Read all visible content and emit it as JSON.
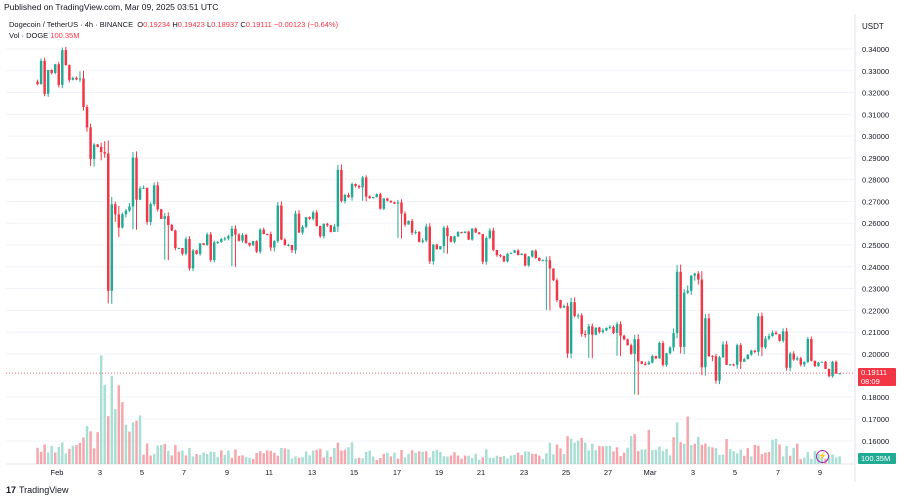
{
  "header": {
    "published": "Published on TradingView.com, Mar 09, 2025 03:51 UTC",
    "quote_unit": "USDT"
  },
  "legend": {
    "symbol": "Dogecoin / TetherUS · 4h · BINANCE",
    "open_label": "O",
    "open": "0.19234",
    "high_label": "H",
    "high": "0.19423",
    "low_label": "L",
    "low": "0.18937",
    "close_label": "C",
    "close": "0.19111",
    "change": "−0.00123 (−0.64%)",
    "vol_label": "Vol · DOGE",
    "vol_value": "100.35M"
  },
  "price_badge": {
    "price": "0.19111",
    "countdown": "08:09"
  },
  "volume_badge": "100.35M",
  "footer": {
    "brand": "TradingView"
  },
  "colors": {
    "up": "#22ab94",
    "down": "#f23645",
    "up_vol": "#a8ded4",
    "down_vol": "#f5a6ac",
    "grid": "#f0f3fa",
    "text": "#131722"
  },
  "chart_data": {
    "type": "candlestick",
    "timeframe": "4h",
    "ylim": [
      0.15,
      0.35
    ],
    "y_ticks": [
      "0.34000",
      "0.33000",
      "0.32000",
      "0.31000",
      "0.30000",
      "0.29000",
      "0.28000",
      "0.27000",
      "0.26000",
      "0.25000",
      "0.24000",
      "0.23000",
      "0.22000",
      "0.21000",
      "0.20000",
      "0.18000",
      "0.17000",
      "0.16000"
    ],
    "x_tick_labels": [
      "Feb",
      "3",
      "5",
      "7",
      "9",
      "11",
      "13",
      "15",
      "17",
      "19",
      "21",
      "23",
      "25",
      "27",
      "Mar",
      "3",
      "5",
      "7",
      "9"
    ],
    "last_price": 0.19111,
    "daily_closes": [
      {
        "day": "Jan 31",
        "o": 0.325,
        "h": 0.336,
        "l": 0.318,
        "c": 0.333
      },
      {
        "day": "Feb 1",
        "o": 0.333,
        "h": 0.341,
        "l": 0.322,
        "c": 0.326
      },
      {
        "day": "Feb 2",
        "o": 0.326,
        "h": 0.33,
        "l": 0.286,
        "c": 0.295
      },
      {
        "day": "Feb 3",
        "o": 0.295,
        "h": 0.298,
        "l": 0.223,
        "c": 0.258
      },
      {
        "day": "Feb 4",
        "o": 0.258,
        "h": 0.293,
        "l": 0.257,
        "c": 0.276
      },
      {
        "day": "Feb 5",
        "o": 0.276,
        "h": 0.279,
        "l": 0.259,
        "c": 0.262
      },
      {
        "day": "Feb 6",
        "o": 0.262,
        "h": 0.265,
        "l": 0.243,
        "c": 0.246
      },
      {
        "day": "Feb 7",
        "o": 0.246,
        "h": 0.254,
        "l": 0.238,
        "c": 0.25
      },
      {
        "day": "Feb 8",
        "o": 0.25,
        "h": 0.256,
        "l": 0.242,
        "c": 0.253
      },
      {
        "day": "Feb 9",
        "o": 0.253,
        "h": 0.259,
        "l": 0.24,
        "c": 0.251
      },
      {
        "day": "Feb 10",
        "o": 0.251,
        "h": 0.258,
        "l": 0.246,
        "c": 0.255
      },
      {
        "day": "Feb 11",
        "o": 0.255,
        "h": 0.27,
        "l": 0.247,
        "c": 0.25
      },
      {
        "day": "Feb 12",
        "o": 0.25,
        "h": 0.266,
        "l": 0.246,
        "c": 0.262
      },
      {
        "day": "Feb 13",
        "o": 0.262,
        "h": 0.266,
        "l": 0.253,
        "c": 0.256
      },
      {
        "day": "Feb 14",
        "o": 0.256,
        "h": 0.287,
        "l": 0.256,
        "c": 0.278
      },
      {
        "day": "Feb 15",
        "o": 0.278,
        "h": 0.282,
        "l": 0.27,
        "c": 0.272
      },
      {
        "day": "Feb 16",
        "o": 0.272,
        "h": 0.274,
        "l": 0.266,
        "c": 0.269
      },
      {
        "day": "Feb 17",
        "o": 0.269,
        "h": 0.271,
        "l": 0.253,
        "c": 0.256
      },
      {
        "day": "Feb 18",
        "o": 0.256,
        "h": 0.26,
        "l": 0.241,
        "c": 0.248
      },
      {
        "day": "Feb 19",
        "o": 0.248,
        "h": 0.259,
        "l": 0.246,
        "c": 0.256
      },
      {
        "day": "Feb 20",
        "o": 0.256,
        "h": 0.258,
        "l": 0.252,
        "c": 0.255
      },
      {
        "day": "Feb 21",
        "o": 0.255,
        "h": 0.258,
        "l": 0.241,
        "c": 0.245
      },
      {
        "day": "Feb 22",
        "o": 0.245,
        "h": 0.248,
        "l": 0.242,
        "c": 0.246
      },
      {
        "day": "Feb 23",
        "o": 0.246,
        "h": 0.248,
        "l": 0.24,
        "c": 0.243
      },
      {
        "day": "Feb 24",
        "o": 0.243,
        "h": 0.245,
        "l": 0.22,
        "c": 0.222
      },
      {
        "day": "Feb 25",
        "o": 0.222,
        "h": 0.226,
        "l": 0.198,
        "c": 0.209
      },
      {
        "day": "Feb 26",
        "o": 0.209,
        "h": 0.214,
        "l": 0.198,
        "c": 0.212
      },
      {
        "day": "Feb 27",
        "o": 0.212,
        "h": 0.215,
        "l": 0.199,
        "c": 0.204
      },
      {
        "day": "Feb 28",
        "o": 0.204,
        "h": 0.209,
        "l": 0.181,
        "c": 0.196
      },
      {
        "day": "Mar 1",
        "o": 0.196,
        "h": 0.206,
        "l": 0.194,
        "c": 0.203
      },
      {
        "day": "Mar 2",
        "o": 0.203,
        "h": 0.241,
        "l": 0.2,
        "c": 0.236
      },
      {
        "day": "Mar 3",
        "o": 0.236,
        "h": 0.238,
        "l": 0.19,
        "c": 0.199
      },
      {
        "day": "Mar 4",
        "o": 0.199,
        "h": 0.206,
        "l": 0.186,
        "c": 0.195
      },
      {
        "day": "Mar 5",
        "o": 0.195,
        "h": 0.205,
        "l": 0.193,
        "c": 0.201
      },
      {
        "day": "Mar 6",
        "o": 0.201,
        "h": 0.219,
        "l": 0.199,
        "c": 0.209
      },
      {
        "day": "Mar 7",
        "o": 0.209,
        "h": 0.212,
        "l": 0.192,
        "c": 0.198
      },
      {
        "day": "Mar 8",
        "o": 0.198,
        "h": 0.208,
        "l": 0.194,
        "c": 0.196
      },
      {
        "day": "Mar 9",
        "o": 0.196,
        "h": 0.197,
        "l": 0.189,
        "c": 0.191
      }
    ],
    "volume_relative": [
      0.2,
      0.25,
      0.35,
      1.0,
      0.55,
      0.2,
      0.18,
      0.15,
      0.12,
      0.15,
      0.12,
      0.14,
      0.13,
      0.14,
      0.2,
      0.12,
      0.1,
      0.13,
      0.13,
      0.11,
      0.1,
      0.13,
      0.1,
      0.11,
      0.2,
      0.28,
      0.18,
      0.17,
      0.3,
      0.16,
      0.45,
      0.32,
      0.22,
      0.17,
      0.22,
      0.18,
      0.12,
      0.1
    ]
  }
}
